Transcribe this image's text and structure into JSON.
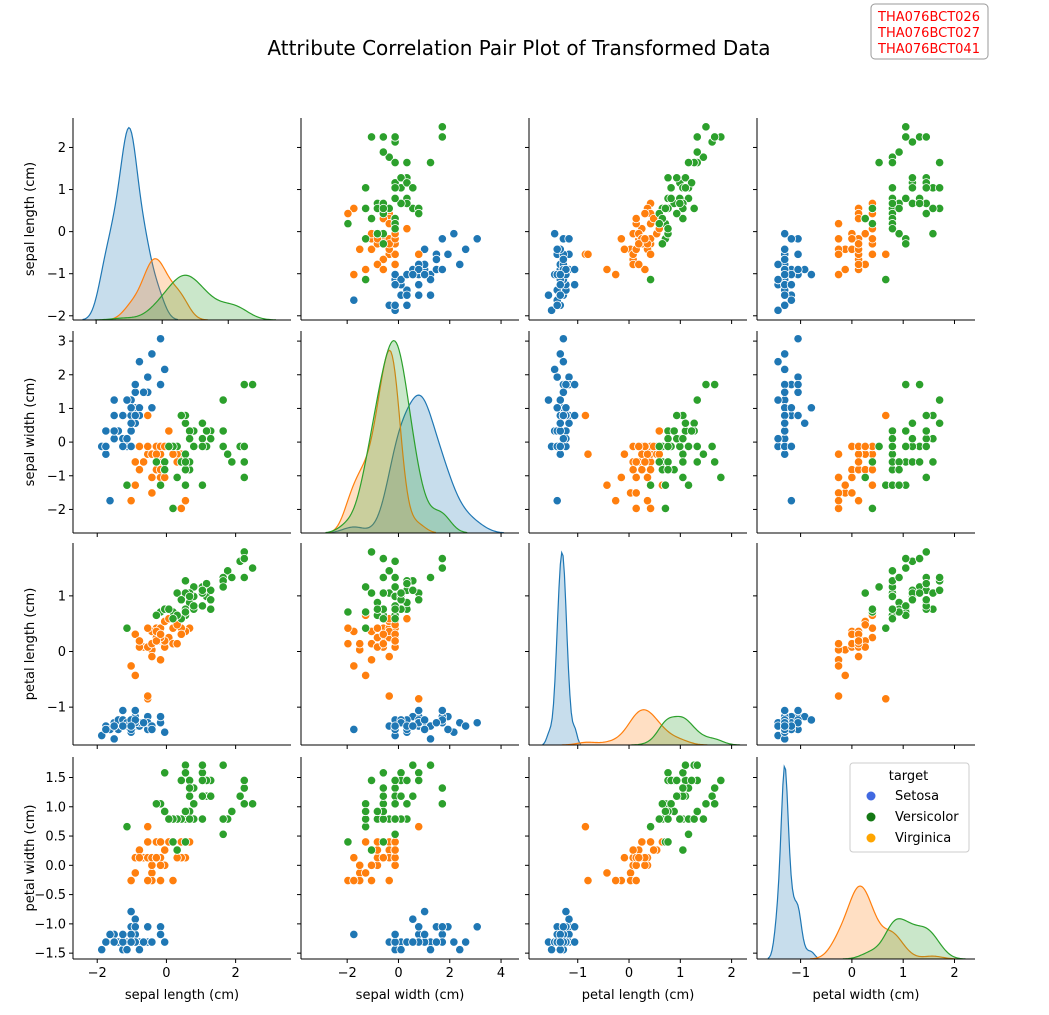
{
  "figure": {
    "title": "Attribute Correlation Pair Plot of Transformed Data",
    "ids": [
      "THA076BCT026",
      "THA076BCT027",
      "THA076BCT041"
    ]
  },
  "chart_data": {
    "type": "scatter",
    "subtype": "pairplot",
    "variables": [
      "sepal length (cm)",
      "sepal width (cm)",
      "petal length (cm)",
      "petal width (cm)"
    ],
    "diagonal": "kde",
    "legend": {
      "title": "target",
      "placement": "inside bottom-right panel, top-right",
      "entries": [
        {
          "label": "Setosa",
          "color": "#4169e1"
        },
        {
          "label": "Versicolor",
          "color": "#147814"
        },
        {
          "label": "Virginica",
          "color": "#ffa500"
        }
      ]
    },
    "plot_colors": {
      "Setosa": "#1f77b4",
      "Versicolor": "#ff7f0e",
      "Virginica": "#2ca02c"
    },
    "axes": {
      "sepal length (cm)": {
        "range": [
          -2.7,
          3.6
        ],
        "diag_range": [
          -2.7,
          3.9
        ],
        "ylim": [
          -2.1,
          2.7
        ],
        "xticks": [
          -2,
          0,
          2
        ],
        "yticks": [
          -2,
          -1,
          0,
          1,
          2
        ]
      },
      "sepal width (cm)": {
        "range": [
          -3.8,
          4.7
        ],
        "ylim": [
          -2.7,
          3.3
        ],
        "xticks": [
          -2,
          0,
          2,
          4
        ],
        "yticks": [
          -2,
          -1,
          0,
          1,
          2,
          3
        ]
      },
      "petal length (cm)": {
        "range": [
          -1.95,
          2.3
        ],
        "ylim": [
          -1.68,
          1.95
        ],
        "xticks": [
          -1,
          0,
          1,
          2
        ],
        "yticks": [
          -1,
          0,
          1
        ]
      },
      "petal width (cm)": {
        "range": [
          -1.85,
          2.4
        ],
        "ylim": [
          -1.6,
          1.85
        ],
        "xticks": [
          -1,
          0,
          1,
          2
        ],
        "yticks": [
          -1.5,
          -1.0,
          -0.5,
          0.0,
          0.5,
          1.0,
          1.5
        ],
        "ytick_labels": [
          "−1.5",
          "−1.0",
          "−0.5",
          "0.0",
          "0.5",
          "1.0",
          "1.5"
        ]
      }
    },
    "series": [
      {
        "label": "Setosa",
        "points": [
          [
            -0.9,
            1.02,
            -1.34,
            -1.31
          ],
          [
            -1.14,
            -0.13,
            -1.34,
            -1.31
          ],
          [
            -1.39,
            0.33,
            -1.4,
            -1.31
          ],
          [
            -1.51,
            0.1,
            -1.28,
            -1.31
          ],
          [
            -1.02,
            1.25,
            -1.34,
            -1.31
          ],
          [
            -0.54,
            1.93,
            -1.17,
            -1.05
          ],
          [
            -1.51,
            0.79,
            -1.34,
            -1.18
          ],
          [
            -1.02,
            0.79,
            -1.28,
            -1.31
          ],
          [
            -1.75,
            -0.36,
            -1.34,
            -1.31
          ],
          [
            -1.14,
            0.1,
            -1.28,
            -1.44
          ],
          [
            -0.54,
            1.48,
            -1.28,
            -1.31
          ],
          [
            -1.26,
            0.79,
            -1.23,
            -1.31
          ],
          [
            -1.26,
            -0.13,
            -1.34,
            -1.44
          ],
          [
            -1.87,
            -0.13,
            -1.51,
            -1.44
          ],
          [
            -0.05,
            2.16,
            -1.45,
            -1.31
          ],
          [
            -0.17,
            3.07,
            -1.28,
            -1.05
          ],
          [
            -0.54,
            1.93,
            -1.4,
            -1.05
          ],
          [
            -0.9,
            1.02,
            -1.34,
            -1.18
          ],
          [
            -0.17,
            1.71,
            -1.17,
            -1.18
          ],
          [
            -0.9,
            1.71,
            -1.28,
            -1.18
          ],
          [
            -0.54,
            0.79,
            -1.17,
            -1.31
          ],
          [
            -0.9,
            1.48,
            -1.28,
            -1.05
          ],
          [
            -1.51,
            1.25,
            -1.57,
            -1.31
          ],
          [
            -0.9,
            0.56,
            -1.17,
            -0.92
          ],
          [
            -1.26,
            0.79,
            -1.06,
            -1.31
          ],
          [
            -1.02,
            -0.13,
            -1.23,
            -1.31
          ],
          [
            -1.02,
            0.79,
            -1.23,
            -1.05
          ],
          [
            -0.78,
            1.02,
            -1.28,
            -1.31
          ],
          [
            -0.78,
            0.79,
            -1.34,
            -1.31
          ],
          [
            -1.39,
            0.33,
            -1.23,
            -1.31
          ],
          [
            -1.26,
            0.1,
            -1.23,
            -1.31
          ],
          [
            -0.54,
            0.79,
            -1.28,
            -1.05
          ],
          [
            -0.78,
            2.39,
            -1.28,
            -1.44
          ],
          [
            -0.42,
            2.62,
            -1.34,
            -1.31
          ],
          [
            -1.14,
            0.1,
            -1.28,
            -1.44
          ],
          [
            -1.02,
            0.33,
            -1.45,
            -1.31
          ],
          [
            -0.42,
            1.02,
            -1.4,
            -1.31
          ],
          [
            -1.14,
            1.25,
            -1.34,
            -1.44
          ],
          [
            -1.75,
            -0.13,
            -1.4,
            -1.31
          ],
          [
            -0.9,
            0.79,
            -1.28,
            -1.31
          ],
          [
            -1.02,
            1.02,
            -1.4,
            -1.18
          ],
          [
            -1.63,
            -1.74,
            -1.4,
            -1.18
          ],
          [
            -1.75,
            0.33,
            -1.4,
            -1.31
          ],
          [
            -1.02,
            1.02,
            -1.23,
            -0.79
          ],
          [
            -0.9,
            1.71,
            -1.06,
            -1.05
          ],
          [
            -1.26,
            -0.13,
            -1.34,
            -1.18
          ],
          [
            -0.9,
            1.71,
            -1.23,
            -1.31
          ],
          [
            -1.51,
            0.33,
            -1.34,
            -1.31
          ],
          [
            -0.66,
            1.48,
            -1.28,
            -1.31
          ],
          [
            -1.02,
            0.56,
            -1.34,
            -1.31
          ]
        ]
      },
      {
        "label": "Versicolor",
        "points": [
          [
            0.55,
            -1.28,
            0.65,
            0.4
          ],
          [
            0.67,
            -0.59,
            0.42,
            0.4
          ],
          [
            -0.05,
            -0.82,
            0.76,
            0.92
          ],
          [
            0.55,
            -0.36,
            1.05,
            0.79
          ],
          [
            0.19,
            -0.36,
            0.42,
            0.4
          ],
          [
            0.79,
            -0.13,
            0.99,
            0.79
          ],
          [
            0.55,
            -1.74,
            0.36,
            0.13
          ],
          [
            -0.42,
            -1.51,
            0.03,
            -0.13
          ],
          [
            0.43,
            -1.97,
            0.42,
            0.4
          ],
          [
            -1.14,
            -1.28,
            0.42,
            0.66
          ],
          [
            -0.17,
            -0.59,
            0.19,
            0.13
          ],
          [
            -0.05,
            -0.59,
            0.76,
            1.58
          ],
          [
            0.07,
            -0.13,
            0.25,
            0.4
          ],
          [
            -0.17,
            -1.05,
            -0.15,
            -0.26
          ],
          [
            0.43,
            -0.36,
            0.31,
            0.13
          ],
          [
            -0.05,
            -1.05,
            0.14,
            0.0
          ],
          [
            -0.29,
            -0.59,
            0.65,
            1.05
          ],
          [
            -0.29,
            -0.82,
            0.25,
            0.13
          ],
          [
            0.31,
            -0.36,
            0.54,
            0.26
          ],
          [
            0.67,
            0.1,
            0.99,
            0.79
          ],
          [
            -0.54,
            0.79,
            -0.85,
            0.66
          ],
          [
            -0.42,
            -1.51,
            0.03,
            -0.26
          ],
          [
            -0.54,
            -0.36,
            -0.8,
            -0.26
          ],
          [
            0.07,
            -0.13,
            0.76,
            0.79
          ],
          [
            -0.29,
            -0.13,
            0.42,
            0.4
          ],
          [
            -0.05,
            -0.82,
            0.08,
            0.0
          ],
          [
            -0.9,
            -1.28,
            -0.43,
            -0.13
          ],
          [
            -0.42,
            -1.05,
            0.36,
            0.0
          ],
          [
            -0.29,
            -0.82,
            0.25,
            0.13
          ],
          [
            -0.05,
            -0.13,
            0.19,
            0.26
          ],
          [
            -0.54,
            -0.13,
            0.42,
            0.4
          ],
          [
            -0.17,
            -0.36,
            0.25,
            0.13
          ],
          [
            0.19,
            -1.97,
            0.14,
            -0.26
          ],
          [
            -1.02,
            -1.74,
            -0.26,
            -0.26
          ],
          [
            -0.66,
            -0.59,
            0.08,
            0.13
          ],
          [
            -0.54,
            -0.13,
            0.08,
            0.13
          ],
          [
            -0.78,
            -0.82,
            0.08,
            0.26
          ],
          [
            -0.17,
            -0.82,
            0.42,
            0.4
          ],
          [
            -0.42,
            -1.51,
            0.14,
            0.0
          ],
          [
            -0.42,
            -0.36,
            -0.09,
            0.13
          ],
          [
            -0.29,
            -0.13,
            0.19,
            0.13
          ],
          [
            -0.29,
            -0.36,
            0.36,
            0.13
          ],
          [
            0.31,
            -0.59,
            0.14,
            0.13
          ],
          [
            -0.17,
            -0.13,
            0.31,
            0.0
          ],
          [
            -0.05,
            -0.13,
            0.54,
            0.26
          ],
          [
            0.19,
            -0.36,
            0.59,
            0.79
          ],
          [
            -0.9,
            -0.59,
            0.31,
            0.13
          ],
          [
            -0.78,
            -0.13,
            0.19,
            0.13
          ],
          [
            0.31,
            -0.13,
            0.48,
            0.26
          ],
          [
            0.07,
            0.33,
            0.59,
            0.79
          ]
        ]
      },
      {
        "label": "Virginica",
        "points": [
          [
            0.55,
            0.56,
            1.27,
            1.71
          ],
          [
            -0.05,
            -0.82,
            0.76,
            0.92
          ],
          [
            1.16,
            -0.13,
            0.99,
            1.18
          ],
          [
            0.55,
            -0.36,
            1.05,
            0.79
          ],
          [
            0.79,
            -0.13,
            1.16,
            1.32
          ],
          [
            2.13,
            -0.13,
            1.62,
            1.18
          ],
          [
            -1.14,
            -1.28,
            0.42,
            0.66
          ],
          [
            1.77,
            -0.36,
            1.45,
            0.79
          ],
          [
            1.04,
            -1.28,
            1.16,
            0.79
          ],
          [
            1.64,
            1.25,
            1.33,
            1.71
          ],
          [
            0.79,
            0.33,
            0.76,
            1.05
          ],
          [
            0.67,
            -0.82,
            0.88,
            0.92
          ],
          [
            1.16,
            -0.13,
            0.99,
            1.18
          ],
          [
            -0.17,
            -1.28,
            0.71,
            1.05
          ],
          [
            -0.05,
            -0.59,
            0.76,
            1.58
          ],
          [
            0.67,
            0.33,
            0.88,
            1.45
          ],
          [
            0.79,
            -0.13,
            0.99,
            0.79
          ],
          [
            2.25,
            1.71,
            1.67,
            1.32
          ],
          [
            2.25,
            -1.05,
            1.79,
            1.45
          ],
          [
            0.19,
            -1.97,
            0.71,
            0.4
          ],
          [
            1.28,
            0.33,
            1.1,
            1.45
          ],
          [
            -0.29,
            -0.59,
            0.65,
            1.05
          ],
          [
            2.25,
            -0.59,
            1.67,
            1.05
          ],
          [
            0.55,
            -0.82,
            0.65,
            0.79
          ],
          [
            1.04,
            0.56,
            1.1,
            1.18
          ],
          [
            1.64,
            0.33,
            1.27,
            0.79
          ],
          [
            0.43,
            -0.59,
            0.59,
            0.79
          ],
          [
            0.31,
            -0.13,
            0.65,
            0.79
          ],
          [
            0.67,
            -0.59,
            1.05,
            1.18
          ],
          [
            1.64,
            -0.13,
            1.16,
            0.53
          ],
          [
            1.89,
            -0.59,
            1.33,
            0.92
          ],
          [
            2.49,
            1.71,
            1.5,
            1.05
          ],
          [
            0.67,
            -0.59,
            1.05,
            1.32
          ],
          [
            0.55,
            -0.59,
            0.76,
            0.4
          ],
          [
            0.31,
            -1.05,
            1.05,
            0.26
          ],
          [
            2.25,
            -0.13,
            1.33,
            1.45
          ],
          [
            0.55,
            0.79,
            1.05,
            1.58
          ],
          [
            0.67,
            0.1,
            0.99,
            0.79
          ],
          [
            0.19,
            -0.13,
            0.59,
            0.79
          ],
          [
            1.28,
            0.1,
            0.93,
            1.18
          ],
          [
            1.04,
            0.1,
            1.05,
            1.58
          ],
          [
            1.28,
            0.1,
            0.76,
            1.45
          ],
          [
            -0.05,
            -0.82,
            0.76,
            0.92
          ],
          [
            1.16,
            0.33,
            1.22,
            1.45
          ],
          [
            1.04,
            0.56,
            1.1,
            1.71
          ],
          [
            1.04,
            -0.13,
            0.82,
            1.45
          ],
          [
            0.55,
            -1.28,
            0.71,
            0.92
          ],
          [
            0.79,
            -0.13,
            0.82,
            1.05
          ],
          [
            0.43,
            0.79,
            0.93,
            1.45
          ],
          [
            0.07,
            -0.13,
            0.76,
            0.79
          ]
        ]
      }
    ],
    "kde_peaks": {
      "sepal length (cm)": {
        "Setosa": 2.45,
        "Versicolor": 0.78,
        "Virginica": 0.57
      },
      "sepal width (cm)": {
        "Setosa": 0.43,
        "Versicolor": 0.57,
        "Virginica": 0.6
      },
      "petal length (cm)": {
        "Setosa": 6.6,
        "Versicolor": 1.21,
        "Virginica": 0.98
      },
      "petal width (cm)": {
        "Setosa": 4.3,
        "Versicolor": 1.63,
        "Virginica": 0.9
      }
    }
  }
}
